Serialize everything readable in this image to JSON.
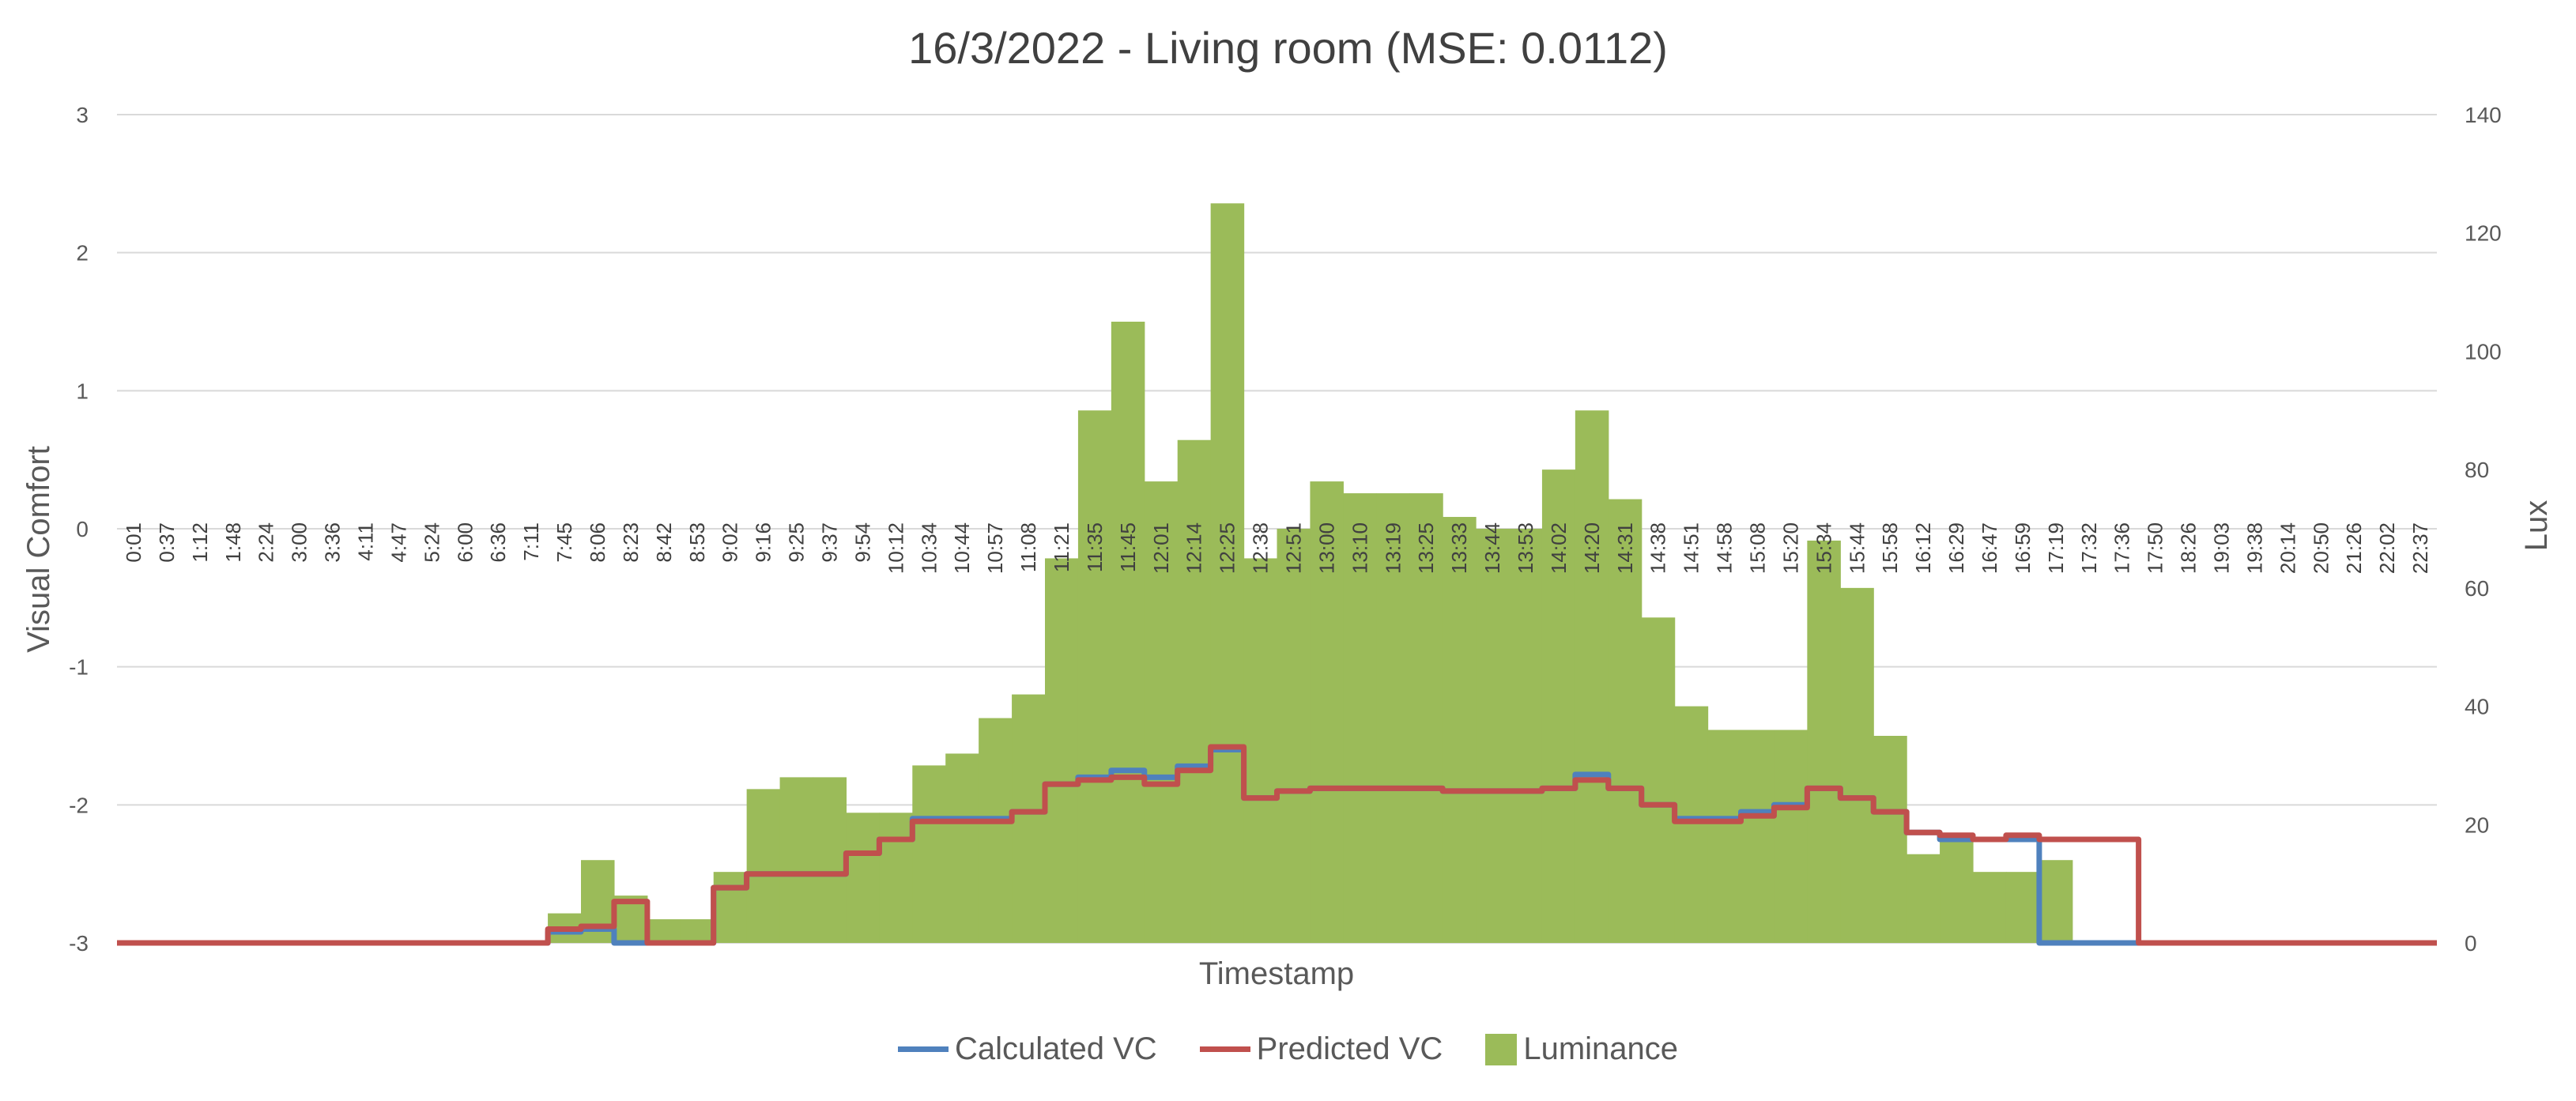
{
  "chart_data": {
    "type": "line",
    "title": "16/3/2022 - Living room (MSE: 0.0112)",
    "xlabel": "Timestamp",
    "ylabel": "Visual Comfort",
    "y2label": "Lux",
    "ylim": [
      -3,
      3
    ],
    "y2lim": [
      0,
      140
    ],
    "yticks": [
      "3",
      "2",
      "1",
      "0",
      "-1",
      "-2",
      "-3"
    ],
    "y2ticks": [
      "140",
      "120",
      "100",
      "80",
      "60",
      "40",
      "20",
      "0"
    ],
    "grid": true,
    "legend_position": "bottom",
    "categories": [
      "0:01",
      "0:37",
      "1:12",
      "1:48",
      "2:24",
      "3:00",
      "3:36",
      "4:11",
      "4:47",
      "5:24",
      "6:00",
      "6:36",
      "7:11",
      "7:45",
      "8:06",
      "8:23",
      "8:42",
      "8:53",
      "9:02",
      "9:16",
      "9:25",
      "9:37",
      "9:54",
      "10:12",
      "10:34",
      "10:44",
      "10:57",
      "11:08",
      "11:21",
      "11:35",
      "11:45",
      "12:01",
      "12:14",
      "12:25",
      "12:38",
      "12:51",
      "13:00",
      "13:10",
      "13:19",
      "13:25",
      "13:33",
      "13:44",
      "13:53",
      "14:02",
      "14:20",
      "14:31",
      "14:38",
      "14:51",
      "14:58",
      "15:08",
      "15:20",
      "15:34",
      "15:44",
      "15:58",
      "16:12",
      "16:29",
      "16:47",
      "16:59",
      "17:19",
      "17:32",
      "17:36",
      "17:50",
      "18:26",
      "19:03",
      "19:38",
      "20:14",
      "20:50",
      "21:26",
      "22:02",
      "22:37"
    ],
    "series": [
      {
        "name": "Luminance",
        "axis": "secondary",
        "kind": "area",
        "values": [
          0,
          0,
          0,
          0,
          0,
          0,
          0,
          0,
          0,
          0,
          0,
          0,
          0,
          5,
          14,
          8,
          4,
          4,
          12,
          26,
          28,
          28,
          22,
          22,
          30,
          32,
          38,
          42,
          65,
          90,
          105,
          78,
          85,
          125,
          65,
          70,
          78,
          76,
          76,
          76,
          72,
          70,
          70,
          80,
          90,
          75,
          55,
          40,
          36,
          36,
          36,
          68,
          60,
          35,
          15,
          18,
          12,
          12,
          14,
          0,
          0,
          0,
          0,
          0,
          0,
          0,
          0,
          0,
          0,
          0
        ]
      },
      {
        "name": "Calculated VC",
        "axis": "primary",
        "kind": "line",
        "values": [
          -3,
          -3,
          -3,
          -3,
          -3,
          -3,
          -3,
          -3,
          -3,
          -3,
          -3,
          -3,
          -3,
          -2.92,
          -2.9,
          -3,
          -3,
          -3,
          -2.6,
          -2.5,
          -2.5,
          -2.5,
          -2.35,
          -2.25,
          -2.1,
          -2.1,
          -2.1,
          -2.05,
          -1.85,
          -1.8,
          -1.75,
          -1.8,
          -1.72,
          -1.6,
          -1.95,
          -1.9,
          -1.88,
          -1.88,
          -1.88,
          -1.88,
          -1.9,
          -1.9,
          -1.9,
          -1.88,
          -1.78,
          -1.88,
          -2.0,
          -2.1,
          -2.1,
          -2.05,
          -2.0,
          -1.88,
          -1.95,
          -2.05,
          -2.2,
          -2.25,
          -2.25,
          -2.25,
          -3,
          -3,
          -3,
          -3,
          -3,
          -3,
          -3,
          -3,
          -3,
          -3,
          -3,
          -3
        ]
      },
      {
        "name": "Predicted VC",
        "axis": "primary",
        "kind": "line",
        "values": [
          -3,
          -3,
          -3,
          -3,
          -3,
          -3,
          -3,
          -3,
          -3,
          -3,
          -3,
          -3,
          -3,
          -2.9,
          -2.88,
          -2.7,
          -3,
          -3,
          -2.6,
          -2.5,
          -2.5,
          -2.5,
          -2.35,
          -2.25,
          -2.12,
          -2.12,
          -2.12,
          -2.05,
          -1.85,
          -1.82,
          -1.8,
          -1.85,
          -1.75,
          -1.58,
          -1.95,
          -1.9,
          -1.88,
          -1.88,
          -1.88,
          -1.88,
          -1.9,
          -1.9,
          -1.9,
          -1.88,
          -1.82,
          -1.88,
          -2.0,
          -2.12,
          -2.12,
          -2.08,
          -2.02,
          -1.88,
          -1.95,
          -2.05,
          -2.2,
          -2.22,
          -2.25,
          -2.22,
          -2.25,
          -2.25,
          -2.25,
          -3,
          -3,
          -3,
          -3,
          -3,
          -3,
          -3,
          -3,
          -3
        ]
      }
    ],
    "colors": {
      "luminance": "#9BBB59",
      "calculated": "#4F81BD",
      "predicted": "#C0504D",
      "grid": "#D9D9D9"
    }
  }
}
